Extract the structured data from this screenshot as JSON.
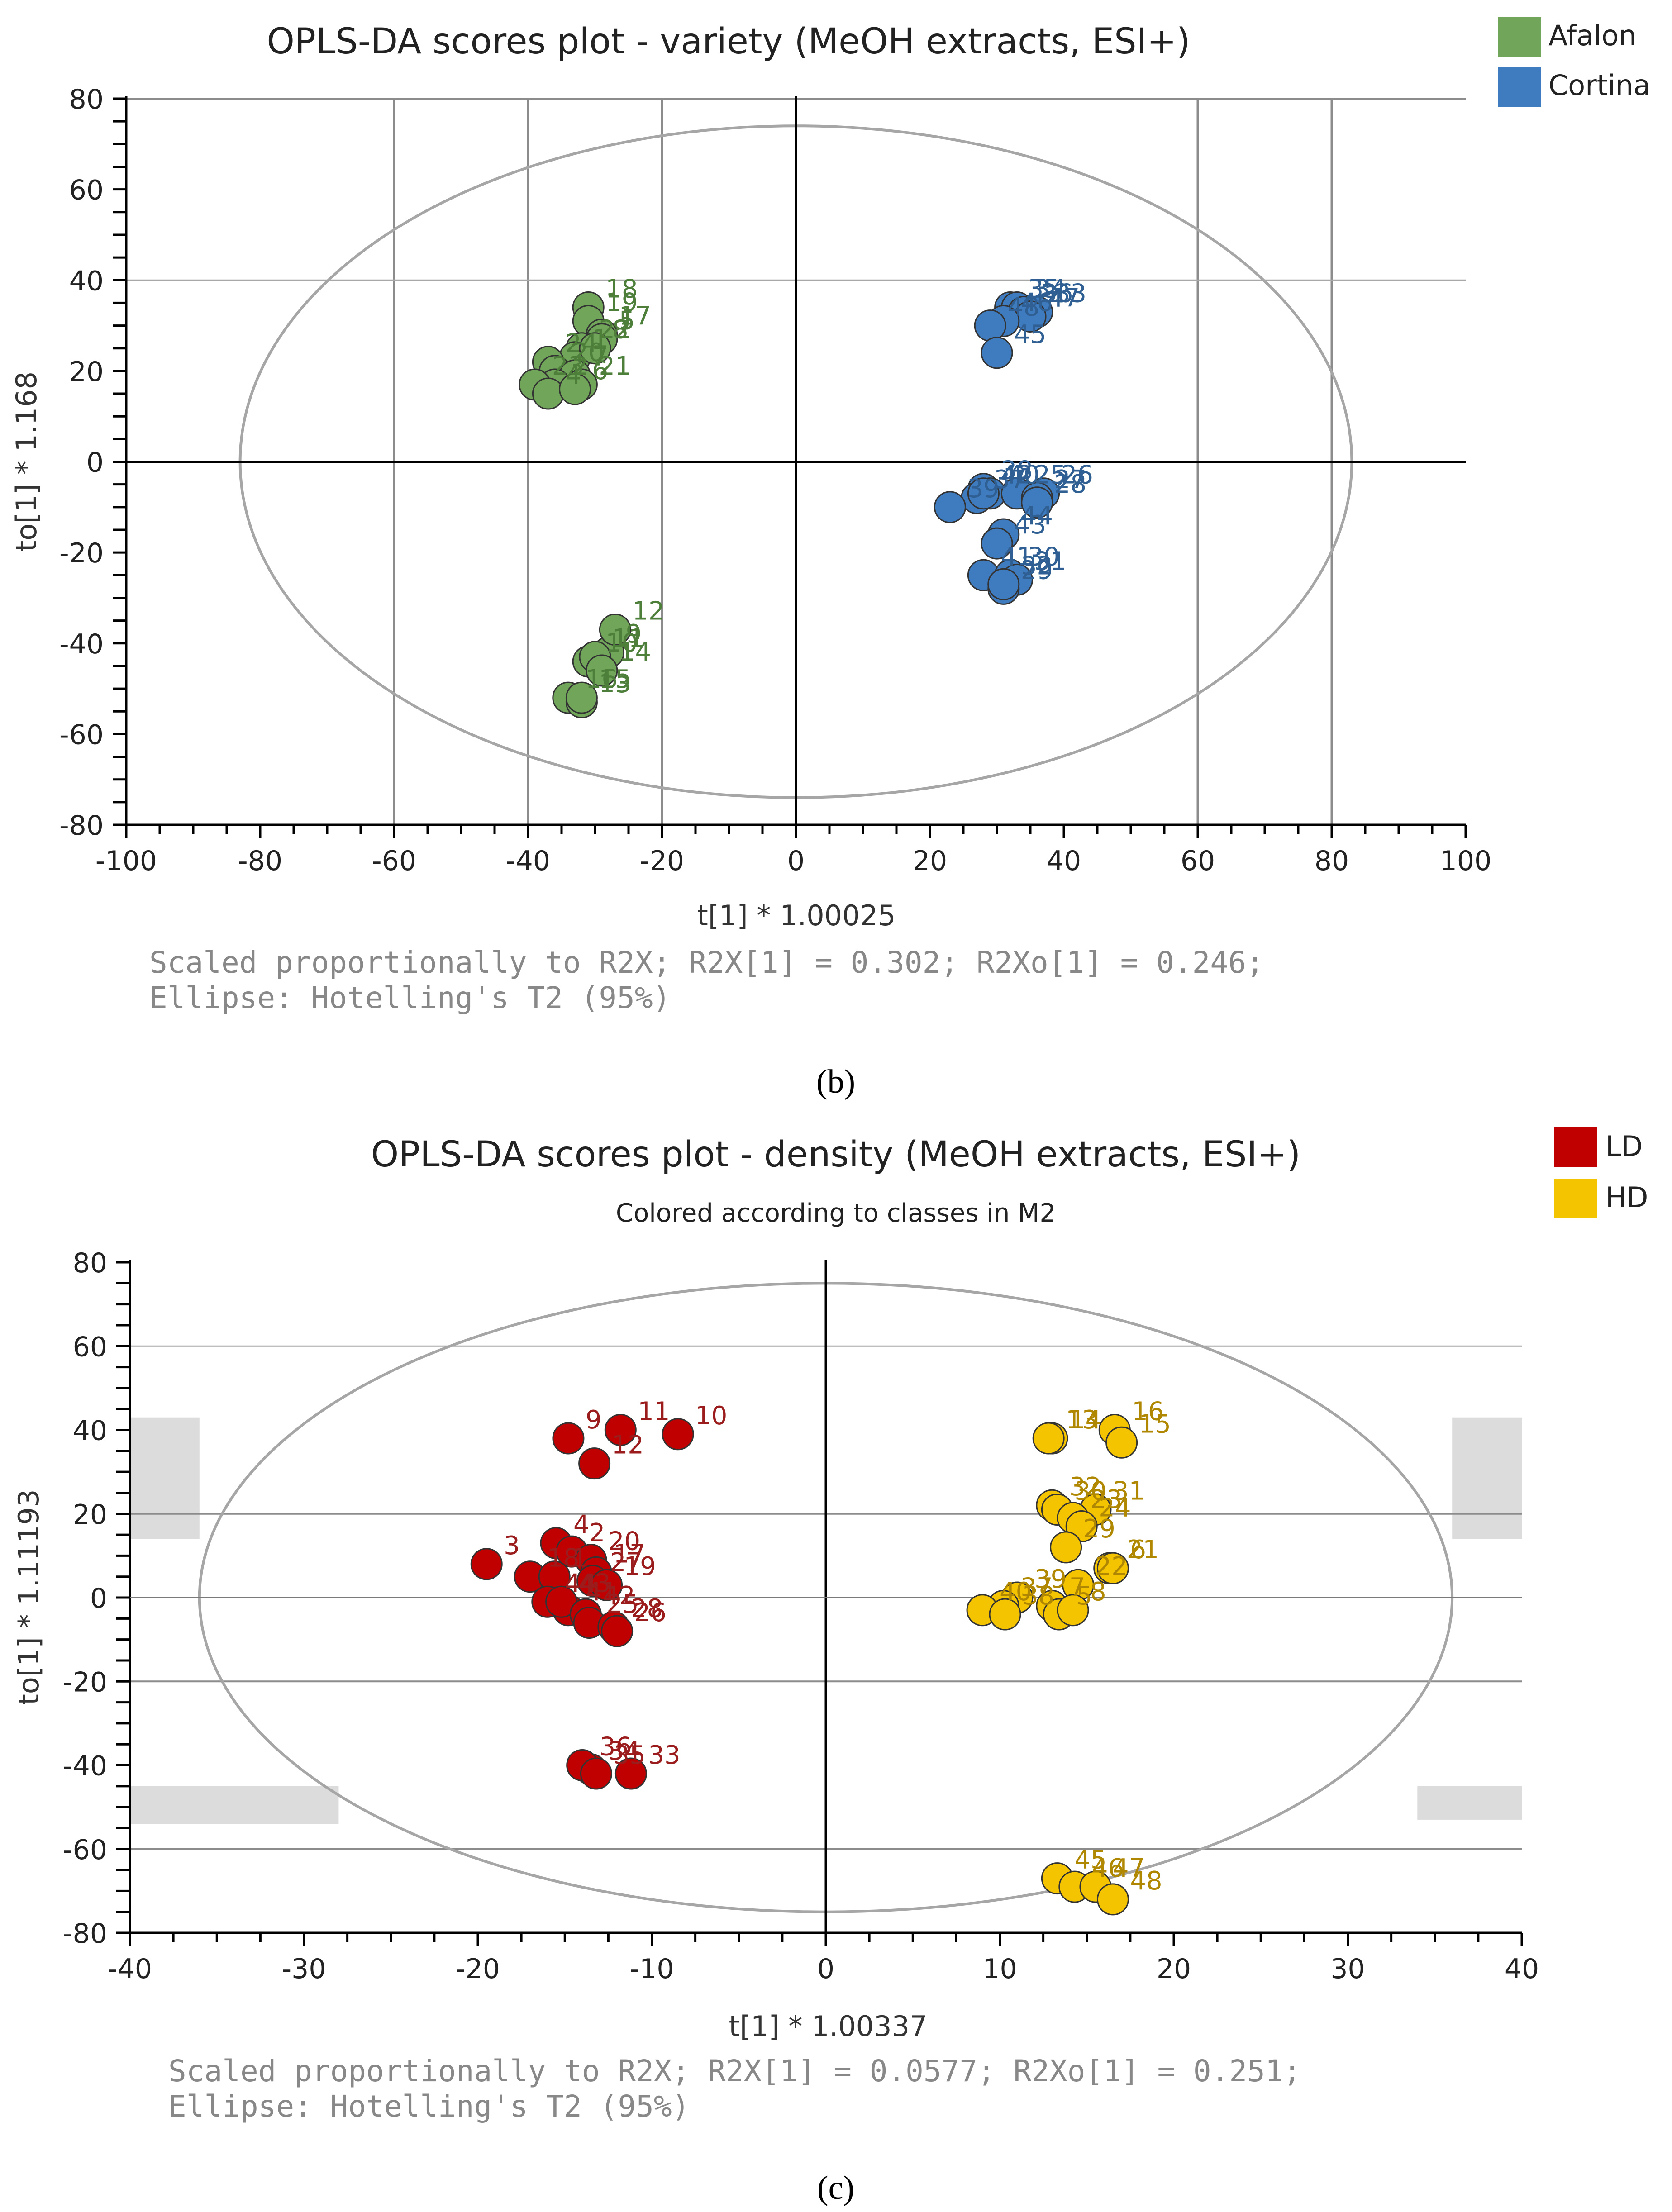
{
  "panels": [
    {
      "id": "b",
      "panel_label": "(b)",
      "chart_data": {
        "type": "scatter",
        "title": "OPLS-DA scores plot - variety (MeOH extracts, ESI+)",
        "subtitle": "",
        "xlabel": "t[1] * 1.00025",
        "ylabel": "to[1] * 1.168",
        "xlim": [
          -100,
          100
        ],
        "ylim": [
          -80,
          80
        ],
        "xticks": [
          -100,
          -80,
          -60,
          -40,
          -20,
          0,
          20,
          40,
          60,
          80,
          100
        ],
        "yticks": [
          -80,
          -60,
          -40,
          -20,
          0,
          20,
          40,
          60,
          80
        ],
        "xtick_labels": [
          "-100",
          "-80",
          "-60",
          "-40",
          "-20",
          "0",
          "20",
          "40",
          "60",
          "80",
          "100"
        ],
        "ytick_labels": [
          "-80",
          "-60",
          "-40",
          "-20",
          "0",
          "20",
          "40",
          "60",
          "80"
        ],
        "vertical_gridlines": [
          -60,
          -40,
          -20,
          60,
          80
        ],
        "horizontal_gridlines": [
          40,
          80
        ],
        "ellipse": {
          "rx": 83,
          "ry": 74
        },
        "legend_position": "top-right",
        "legend": [
          {
            "label": "Afalon",
            "color": "#70a55a"
          },
          {
            "label": "Cortina",
            "color": "#3f7bbf"
          }
        ],
        "footnote": [
          "Scaled proportionally to R2X; R2X[1] = 0.302; R2Xo[1] = 0.246;",
          "Ellipse: Hotelling's T2 (95%)"
        ],
        "series": [
          {
            "name": "Afalon",
            "color": "#70a55a",
            "label_color": "#4e7f3a",
            "points": [
              {
                "id": "18",
                "x": -31,
                "y": 34
              },
              {
                "id": "19",
                "x": -31,
                "y": 31
              },
              {
                "id": "17",
                "x": -29,
                "y": 28
              },
              {
                "id": "22",
                "x": -32,
                "y": 25
              },
              {
                "id": "1",
                "x": -33,
                "y": 23
              },
              {
                "id": "5",
                "x": -29,
                "y": 27
              },
              {
                "id": "8",
                "x": -30,
                "y": 25
              },
              {
                "id": "24",
                "x": -37,
                "y": 22
              },
              {
                "id": "20",
                "x": -36,
                "y": 20
              },
              {
                "id": "7",
                "x": -33,
                "y": 19
              },
              {
                "id": "21",
                "x": -32,
                "y": 17
              },
              {
                "id": "2",
                "x": -36,
                "y": 17
              },
              {
                "id": "23",
                "x": -39,
                "y": 17
              },
              {
                "id": "4",
                "x": -37,
                "y": 15
              },
              {
                "id": "6",
                "x": -33,
                "y": 16
              },
              {
                "id": "9",
                "x": -28,
                "y": -42
              },
              {
                "id": "12",
                "x": -27,
                "y": -37
              },
              {
                "id": "10",
                "x": -31,
                "y": -44
              },
              {
                "id": "11",
                "x": -30,
                "y": -43
              },
              {
                "id": "14",
                "x": -29,
                "y": -46
              },
              {
                "id": "16",
                "x": -34,
                "y": -52
              },
              {
                "id": "13",
                "x": -32,
                "y": -53
              },
              {
                "id": "15",
                "x": -32,
                "y": -52
              }
            ]
          },
          {
            "name": "Cortina",
            "color": "#3f7bbf",
            "label_color": "#2f5f93",
            "points": [
              {
                "id": "35",
                "x": 32,
                "y": 34
              },
              {
                "id": "34",
                "x": 33,
                "y": 34
              },
              {
                "id": "36",
                "x": 34,
                "y": 33
              },
              {
                "id": "33",
                "x": 36,
                "y": 33
              },
              {
                "id": "47",
                "x": 35,
                "y": 32
              },
              {
                "id": "46",
                "x": 31,
                "y": 31
              },
              {
                "id": "48",
                "x": 29,
                "y": 30
              },
              {
                "id": "45",
                "x": 30,
                "y": 24
              },
              {
                "id": "38",
                "x": 28,
                "y": -6
              },
              {
                "id": "40",
                "x": 29,
                "y": -7
              },
              {
                "id": "25",
                "x": 33,
                "y": -7
              },
              {
                "id": "26",
                "x": 37,
                "y": -7
              },
              {
                "id": "37",
                "x": 27,
                "y": -8
              },
              {
                "id": "42",
                "x": 28,
                "y": -7
              },
              {
                "id": "27",
                "x": 36,
                "y": -8
              },
              {
                "id": "28",
                "x": 36,
                "y": -9
              },
              {
                "id": "39",
                "x": 23,
                "y": -10
              },
              {
                "id": "44",
                "x": 31,
                "y": -16
              },
              {
                "id": "43",
                "x": 30,
                "y": -18
              },
              {
                "id": "41",
                "x": 28,
                "y": -25
              },
              {
                "id": "30",
                "x": 32,
                "y": -25
              },
              {
                "id": "31",
                "x": 33,
                "y": -26
              },
              {
                "id": "29",
                "x": 31,
                "y": -28
              },
              {
                "id": "32",
                "x": 31,
                "y": -27
              }
            ]
          }
        ]
      }
    },
    {
      "id": "c",
      "panel_label": "(c)",
      "chart_data": {
        "type": "scatter",
        "title": "OPLS-DA scores plot - density (MeOH extracts, ESI+)",
        "subtitle": "Colored according to classes in M2",
        "xlabel": "t[1] * 1.00337",
        "ylabel": "to[1] * 1.11193",
        "xlim": [
          -40,
          40
        ],
        "ylim": [
          -80,
          80
        ],
        "xticks": [
          -40,
          -30,
          -20,
          -10,
          0,
          10,
          20,
          30,
          40
        ],
        "yticks": [
          -80,
          -60,
          -40,
          -20,
          0,
          20,
          40,
          60,
          80
        ],
        "xtick_labels": [
          "-40",
          "-30",
          "-20",
          "-10",
          "0",
          "10",
          "20",
          "30",
          "40"
        ],
        "ytick_labels": [
          "-80",
          "-60",
          "-40",
          "-20",
          "0",
          "20",
          "40",
          "60",
          "80"
        ],
        "horizontal_gridlines": [
          -60,
          -20,
          20,
          60
        ],
        "shaded_bands": [
          {
            "y": [
              14,
              43
            ],
            "side": "left",
            "x_to": -36
          },
          {
            "y": [
              14,
              43
            ],
            "side": "right",
            "x_from": 36
          },
          {
            "y": [
              -54,
              -45
            ],
            "side": "left",
            "x_to": -28
          },
          {
            "y": [
              -53,
              -45
            ],
            "side": "right",
            "x_from": 34
          }
        ],
        "ellipse": {
          "rx": 36,
          "ry": 75
        },
        "legend_position": "top-right",
        "legend": [
          {
            "label": "LD",
            "color": "#c00000"
          },
          {
            "label": "HD",
            "color": "#f5c400"
          }
        ],
        "footnote": [
          "Scaled proportionally to R2X; R2X[1] = 0.0577; R2Xo[1] = 0.251;",
          "Ellipse: Hotelling's T2 (95%)"
        ],
        "series": [
          {
            "name": "LD",
            "color": "#c00000",
            "label_color": "#9b1c1c",
            "points": [
              {
                "id": "11",
                "x": -11.8,
                "y": 40
              },
              {
                "id": "9",
                "x": -14.8,
                "y": 38
              },
              {
                "id": "10",
                "x": -8.5,
                "y": 39
              },
              {
                "id": "12",
                "x": -13.3,
                "y": 32
              },
              {
                "id": "4",
                "x": -15.5,
                "y": 13
              },
              {
                "id": "2",
                "x": -14.6,
                "y": 11
              },
              {
                "id": "20",
                "x": -13.5,
                "y": 9
              },
              {
                "id": "17",
                "x": -13.2,
                "y": 6
              },
              {
                "id": "3",
                "x": -19.5,
                "y": 8
              },
              {
                "id": "18",
                "x": -17,
                "y": 5
              },
              {
                "id": "1",
                "x": -15.6,
                "y": 5
              },
              {
                "id": "27",
                "x": -13.4,
                "y": 4
              },
              {
                "id": "19",
                "x": -12.6,
                "y": 3
              },
              {
                "id": "41",
                "x": -14.8,
                "y": -3
              },
              {
                "id": "44",
                "x": -16,
                "y": -1
              },
              {
                "id": "43",
                "x": -15.2,
                "y": -1
              },
              {
                "id": "42",
                "x": -13.8,
                "y": -4
              },
              {
                "id": "25",
                "x": -13.6,
                "y": -6
              },
              {
                "id": "28",
                "x": -12.2,
                "y": -7
              },
              {
                "id": "26",
                "x": -12,
                "y": -8
              },
              {
                "id": "34",
                "x": -13.5,
                "y": -41
              },
              {
                "id": "36",
                "x": -14,
                "y": -40
              },
              {
                "id": "33",
                "x": -11.2,
                "y": -42
              },
              {
                "id": "35",
                "x": -13.2,
                "y": -42
              }
            ]
          },
          {
            "name": "HD",
            "color": "#f5c400",
            "label_color": "#b08700",
            "points": [
              {
                "id": "16",
                "x": 16.6,
                "y": 40
              },
              {
                "id": "14",
                "x": 13,
                "y": 38
              },
              {
                "id": "13",
                "x": 12.8,
                "y": 38
              },
              {
                "id": "15",
                "x": 17,
                "y": 37
              },
              {
                "id": "32",
                "x": 13,
                "y": 22
              },
              {
                "id": "30",
                "x": 13.3,
                "y": 21
              },
              {
                "id": "31",
                "x": 15.5,
                "y": 21
              },
              {
                "id": "23",
                "x": 14.2,
                "y": 19
              },
              {
                "id": "24",
                "x": 14.7,
                "y": 17
              },
              {
                "id": "29",
                "x": 13.8,
                "y": 12
              },
              {
                "id": "21",
                "x": 16.3,
                "y": 7
              },
              {
                "id": "6",
                "x": 16.5,
                "y": 7
              },
              {
                "id": "22",
                "x": 14.5,
                "y": 3
              },
              {
                "id": "39",
                "x": 11,
                "y": 0
              },
              {
                "id": "37",
                "x": 10.2,
                "y": -2
              },
              {
                "id": "40",
                "x": 9,
                "y": -3
              },
              {
                "id": "38",
                "x": 10.3,
                "y": -4
              },
              {
                "id": "7",
                "x": 13,
                "y": -2
              },
              {
                "id": "5",
                "x": 13.4,
                "y": -4
              },
              {
                "id": "8",
                "x": 14.2,
                "y": -3
              },
              {
                "id": "45",
                "x": 13.3,
                "y": -67
              },
              {
                "id": "46",
                "x": 14.3,
                "y": -69
              },
              {
                "id": "47",
                "x": 15.5,
                "y": -69
              },
              {
                "id": "48",
                "x": 16.5,
                "y": -72
              }
            ]
          }
        ]
      }
    }
  ]
}
